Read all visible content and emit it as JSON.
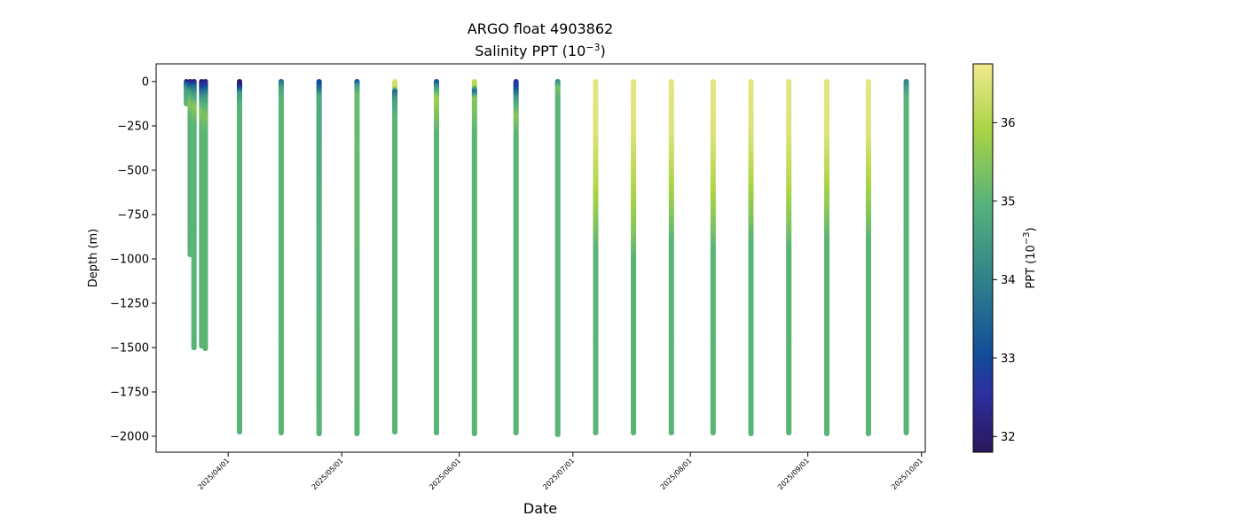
{
  "chart_data": {
    "type": "scatter",
    "title": "ARGO float 4903862",
    "subtitle_prefix": "Salinity PPT (10",
    "subtitle_exp": "−3",
    "subtitle_suffix": ")",
    "xlabel": "Date",
    "ylabel": "Depth (m)",
    "colorbar_label_prefix": "PPT (10",
    "colorbar_label_exp": "−3",
    "colorbar_label_suffix": ")",
    "colormap": "haline",
    "xlim": [
      "2025-03-13",
      "2025-10-02"
    ],
    "ylim": [
      -2090,
      100
    ],
    "clim": [
      31.8,
      36.75
    ],
    "grid": false,
    "x_tick_labels": [
      "2025/04/01",
      "2025/05/01",
      "2025/06/01",
      "2025/07/01",
      "2025/08/01",
      "2025/09/01",
      "2025/10/01"
    ],
    "y_tick_labels": [
      "0",
      "−250",
      "−500",
      "−750",
      "−1000",
      "−1250",
      "−1500",
      "−1750",
      "−2000"
    ],
    "colorbar_tick_labels": [
      "32",
      "33",
      "34",
      "35",
      "36"
    ],
    "profiles": [
      {
        "date": "2025-03-21",
        "max_depth": -125,
        "salinity": [
          [
            0,
            32.0
          ],
          [
            -20,
            33.5
          ],
          [
            -50,
            34.5
          ],
          [
            -125,
            35.0
          ]
        ]
      },
      {
        "date": "2025-03-22",
        "max_depth": -975,
        "salinity": [
          [
            0,
            32.0
          ],
          [
            -20,
            33.0
          ],
          [
            -60,
            34.5
          ],
          [
            -130,
            35.5
          ],
          [
            -200,
            35.0
          ],
          [
            -975,
            35.0
          ]
        ]
      },
      {
        "date": "2025-03-23",
        "max_depth": -1500,
        "salinity": [
          [
            0,
            31.9
          ],
          [
            -30,
            33.5
          ],
          [
            -80,
            34.5
          ],
          [
            -150,
            35.6
          ],
          [
            -250,
            35.0
          ],
          [
            -1500,
            35.0
          ]
        ]
      },
      {
        "date": "2025-03-25",
        "max_depth": -1490,
        "salinity": [
          [
            0,
            31.9
          ],
          [
            -40,
            33.0
          ],
          [
            -100,
            34.5
          ],
          [
            -180,
            35.5
          ],
          [
            -280,
            35.0
          ],
          [
            -1490,
            35.0
          ]
        ]
      },
      {
        "date": "2025-03-26",
        "max_depth": -1505,
        "salinity": [
          [
            0,
            32.0
          ],
          [
            -40,
            33.2
          ],
          [
            -100,
            34.6
          ],
          [
            -200,
            35.4
          ],
          [
            -300,
            35.0
          ],
          [
            -1505,
            35.0
          ]
        ]
      },
      {
        "date": "2025-04-04",
        "max_depth": -1975,
        "salinity": [
          [
            0,
            31.9
          ],
          [
            -30,
            32.3
          ],
          [
            -70,
            34.5
          ],
          [
            -150,
            35.0
          ],
          [
            -1975,
            35.0
          ]
        ]
      },
      {
        "date": "2025-04-15",
        "max_depth": -1980,
        "salinity": [
          [
            0,
            33.5
          ],
          [
            -40,
            34.6
          ],
          [
            -100,
            35.0
          ],
          [
            -1980,
            35.0
          ]
        ]
      },
      {
        "date": "2025-04-25",
        "max_depth": -1985,
        "salinity": [
          [
            0,
            32.8
          ],
          [
            -40,
            33.5
          ],
          [
            -90,
            34.8
          ],
          [
            -1985,
            35.0
          ]
        ]
      },
      {
        "date": "2025-05-05",
        "max_depth": -1985,
        "salinity": [
          [
            0,
            33.0
          ],
          [
            -30,
            34.5
          ],
          [
            -80,
            35.2
          ],
          [
            -1985,
            35.0
          ]
        ]
      },
      {
        "date": "2025-05-15",
        "max_depth": -1975,
        "salinity": [
          [
            0,
            36.5
          ],
          [
            -40,
            36.2
          ],
          [
            -60,
            33.5
          ],
          [
            -100,
            34.5
          ],
          [
            -200,
            35.0
          ],
          [
            -1975,
            35.0
          ]
        ]
      },
      {
        "date": "2025-05-26",
        "max_depth": -1980,
        "salinity": [
          [
            0,
            33.0
          ],
          [
            -40,
            34.5
          ],
          [
            -100,
            35.8
          ],
          [
            -200,
            35.4
          ],
          [
            -300,
            35.0
          ],
          [
            -1980,
            35.0
          ]
        ]
      },
      {
        "date": "2025-06-05",
        "max_depth": -1985,
        "salinity": [
          [
            0,
            36.2
          ],
          [
            -30,
            36.0
          ],
          [
            -60,
            33.5
          ],
          [
            -100,
            35.5
          ],
          [
            -200,
            35.3
          ],
          [
            -300,
            35.0
          ],
          [
            -1985,
            35.0
          ]
        ]
      },
      {
        "date": "2025-06-16",
        "max_depth": -1980,
        "salinity": [
          [
            0,
            32.5
          ],
          [
            -40,
            33.0
          ],
          [
            -100,
            34.5
          ],
          [
            -200,
            35.5
          ],
          [
            -300,
            35.0
          ],
          [
            -1980,
            35.0
          ]
        ]
      },
      {
        "date": "2025-06-27",
        "max_depth": -1990,
        "salinity": [
          [
            0,
            34.0
          ],
          [
            -40,
            35.3
          ],
          [
            -100,
            35.0
          ],
          [
            -1990,
            35.0
          ]
        ]
      },
      {
        "date": "2025-07-07",
        "max_depth": -1980,
        "salinity": [
          [
            0,
            36.6
          ],
          [
            -300,
            36.5
          ],
          [
            -600,
            36.0
          ],
          [
            -800,
            35.5
          ],
          [
            -950,
            35.0
          ],
          [
            -1980,
            35.0
          ]
        ]
      },
      {
        "date": "2025-07-17",
        "max_depth": -1980,
        "salinity": [
          [
            0,
            36.6
          ],
          [
            -300,
            36.5
          ],
          [
            -600,
            36.0
          ],
          [
            -850,
            35.5
          ],
          [
            -1000,
            35.0
          ],
          [
            -1980,
            35.0
          ]
        ]
      },
      {
        "date": "2025-07-27",
        "max_depth": -1980,
        "salinity": [
          [
            0,
            36.6
          ],
          [
            -300,
            36.5
          ],
          [
            -550,
            36.0
          ],
          [
            -750,
            35.5
          ],
          [
            -900,
            35.0
          ],
          [
            -1980,
            35.0
          ]
        ]
      },
      {
        "date": "2025-08-07",
        "max_depth": -1980,
        "salinity": [
          [
            0,
            36.6
          ],
          [
            -300,
            36.5
          ],
          [
            -600,
            36.0
          ],
          [
            -800,
            35.5
          ],
          [
            -950,
            35.0
          ],
          [
            -1980,
            35.0
          ]
        ]
      },
      {
        "date": "2025-08-17",
        "max_depth": -1985,
        "salinity": [
          [
            0,
            36.6
          ],
          [
            -300,
            36.5
          ],
          [
            -550,
            36.0
          ],
          [
            -750,
            35.5
          ],
          [
            -900,
            35.0
          ],
          [
            -1985,
            35.0
          ]
        ]
      },
      {
        "date": "2025-08-27",
        "max_depth": -1980,
        "salinity": [
          [
            0,
            36.6
          ],
          [
            -300,
            36.5
          ],
          [
            -600,
            36.0
          ],
          [
            -800,
            35.5
          ],
          [
            -950,
            35.0
          ],
          [
            -1980,
            35.0
          ]
        ]
      },
      {
        "date": "2025-09-06",
        "max_depth": -1985,
        "salinity": [
          [
            0,
            36.6
          ],
          [
            -300,
            36.5
          ],
          [
            -550,
            36.0
          ],
          [
            -750,
            35.5
          ],
          [
            -900,
            35.0
          ],
          [
            -1985,
            35.0
          ]
        ]
      },
      {
        "date": "2025-09-17",
        "max_depth": -1985,
        "salinity": [
          [
            0,
            36.6
          ],
          [
            -300,
            36.5
          ],
          [
            -550,
            36.0
          ],
          [
            -750,
            35.5
          ],
          [
            -900,
            35.0
          ],
          [
            -1985,
            35.0
          ]
        ]
      },
      {
        "date": "2025-09-27",
        "max_depth": -1980,
        "salinity": [
          [
            0,
            34.0
          ],
          [
            -40,
            34.5
          ],
          [
            -100,
            35.0
          ],
          [
            -1980,
            35.0
          ]
        ]
      }
    ]
  }
}
